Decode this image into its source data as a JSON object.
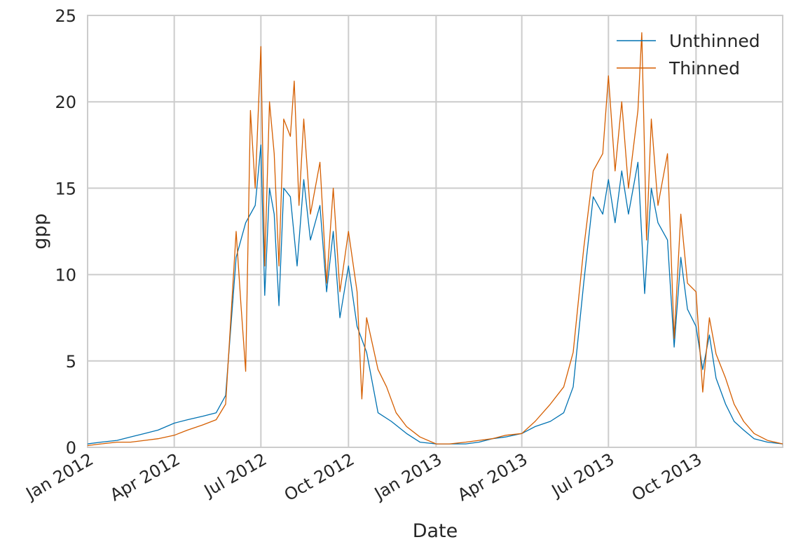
{
  "colors": {
    "unthinned": "#0072b2",
    "thinned": "#d55e00",
    "grid": "#cccccc",
    "text": "#262626"
  },
  "chart_data": {
    "type": "line",
    "xlabel": "Date",
    "ylabel": "gpp",
    "xlim": [
      "2012-01-01",
      "2013-12-31"
    ],
    "ylim": [
      0,
      25
    ],
    "grid": true,
    "legend_position": "top-right",
    "x_ticks": [
      {
        "date": "2012-01-01",
        "label": "Jan 2012"
      },
      {
        "date": "2012-04-01",
        "label": "Apr 2012"
      },
      {
        "date": "2012-07-01",
        "label": "Jul 2012"
      },
      {
        "date": "2012-10-01",
        "label": "Oct 2012"
      },
      {
        "date": "2013-01-01",
        "label": "Jan 2013"
      },
      {
        "date": "2013-04-01",
        "label": "Apr 2013"
      },
      {
        "date": "2013-07-01",
        "label": "Jul 2013"
      },
      {
        "date": "2013-10-01",
        "label": "Oct 2013"
      }
    ],
    "y_ticks": [
      0,
      5,
      10,
      15,
      20,
      25
    ],
    "series": [
      {
        "name": "Unthinned",
        "color": "#0072b2",
        "points": [
          [
            "2012-01-01",
            0.2
          ],
          [
            "2012-01-15",
            0.3
          ],
          [
            "2012-02-01",
            0.4
          ],
          [
            "2012-02-15",
            0.6
          ],
          [
            "2012-03-01",
            0.8
          ],
          [
            "2012-03-15",
            1.0
          ],
          [
            "2012-04-01",
            1.4
          ],
          [
            "2012-04-15",
            1.6
          ],
          [
            "2012-05-01",
            1.8
          ],
          [
            "2012-05-15",
            2.0
          ],
          [
            "2012-05-25",
            3.0
          ],
          [
            "2012-06-05",
            11.0
          ],
          [
            "2012-06-15",
            13.0
          ],
          [
            "2012-06-25",
            14.0
          ],
          [
            "2012-07-01",
            17.5
          ],
          [
            "2012-07-05",
            8.8
          ],
          [
            "2012-07-10",
            15.0
          ],
          [
            "2012-07-15",
            13.5
          ],
          [
            "2012-07-20",
            8.2
          ],
          [
            "2012-07-25",
            15.0
          ],
          [
            "2012-08-01",
            14.5
          ],
          [
            "2012-08-08",
            10.5
          ],
          [
            "2012-08-15",
            15.5
          ],
          [
            "2012-08-22",
            12.0
          ],
          [
            "2012-09-01",
            14.0
          ],
          [
            "2012-09-08",
            9.0
          ],
          [
            "2012-09-15",
            12.5
          ],
          [
            "2012-09-22",
            7.5
          ],
          [
            "2012-10-01",
            10.5
          ],
          [
            "2012-10-10",
            7.0
          ],
          [
            "2012-10-20",
            5.5
          ],
          [
            "2012-11-01",
            2.0
          ],
          [
            "2012-11-15",
            1.5
          ],
          [
            "2012-12-01",
            0.8
          ],
          [
            "2012-12-15",
            0.3
          ],
          [
            "2013-01-01",
            0.2
          ],
          [
            "2013-01-15",
            0.2
          ],
          [
            "2013-02-01",
            0.2
          ],
          [
            "2013-02-15",
            0.3
          ],
          [
            "2013-03-01",
            0.5
          ],
          [
            "2013-03-15",
            0.6
          ],
          [
            "2013-04-01",
            0.8
          ],
          [
            "2013-04-15",
            1.2
          ],
          [
            "2013-05-01",
            1.5
          ],
          [
            "2013-05-15",
            2.0
          ],
          [
            "2013-05-25",
            3.5
          ],
          [
            "2013-06-05",
            9.5
          ],
          [
            "2013-06-15",
            14.5
          ],
          [
            "2013-06-25",
            13.5
          ],
          [
            "2013-07-01",
            15.5
          ],
          [
            "2013-07-08",
            13.0
          ],
          [
            "2013-07-15",
            16.0
          ],
          [
            "2013-07-22",
            13.5
          ],
          [
            "2013-08-01",
            16.5
          ],
          [
            "2013-08-08",
            8.9
          ],
          [
            "2013-08-15",
            15.0
          ],
          [
            "2013-08-22",
            13.0
          ],
          [
            "2013-09-01",
            12.0
          ],
          [
            "2013-09-08",
            5.8
          ],
          [
            "2013-09-15",
            11.0
          ],
          [
            "2013-09-22",
            8.0
          ],
          [
            "2013-10-01",
            7.0
          ],
          [
            "2013-10-08",
            4.5
          ],
          [
            "2013-10-15",
            6.5
          ],
          [
            "2013-10-22",
            4.0
          ],
          [
            "2013-11-01",
            2.5
          ],
          [
            "2013-11-10",
            1.5
          ],
          [
            "2013-11-20",
            1.0
          ],
          [
            "2013-12-01",
            0.5
          ],
          [
            "2013-12-15",
            0.3
          ],
          [
            "2013-12-31",
            0.2
          ]
        ]
      },
      {
        "name": "Thinned",
        "color": "#d55e00",
        "points": [
          [
            "2012-01-01",
            0.1
          ],
          [
            "2012-01-15",
            0.2
          ],
          [
            "2012-02-01",
            0.3
          ],
          [
            "2012-02-15",
            0.3
          ],
          [
            "2012-03-01",
            0.4
          ],
          [
            "2012-03-15",
            0.5
          ],
          [
            "2012-04-01",
            0.7
          ],
          [
            "2012-04-15",
            1.0
          ],
          [
            "2012-05-01",
            1.3
          ],
          [
            "2012-05-15",
            1.6
          ],
          [
            "2012-05-25",
            2.5
          ],
          [
            "2012-06-05",
            12.5
          ],
          [
            "2012-06-10",
            8.3
          ],
          [
            "2012-06-15",
            4.4
          ],
          [
            "2012-06-20",
            19.5
          ],
          [
            "2012-06-25",
            15.0
          ],
          [
            "2012-07-01",
            23.2
          ],
          [
            "2012-07-05",
            10.5
          ],
          [
            "2012-07-10",
            20.0
          ],
          [
            "2012-07-15",
            17.0
          ],
          [
            "2012-07-20",
            10.5
          ],
          [
            "2012-07-25",
            19.0
          ],
          [
            "2012-08-01",
            18.0
          ],
          [
            "2012-08-05",
            21.2
          ],
          [
            "2012-08-10",
            14.0
          ],
          [
            "2012-08-15",
            19.0
          ],
          [
            "2012-08-22",
            13.5
          ],
          [
            "2012-09-01",
            16.5
          ],
          [
            "2012-09-08",
            9.5
          ],
          [
            "2012-09-15",
            15.0
          ],
          [
            "2012-09-22",
            9.0
          ],
          [
            "2012-10-01",
            12.5
          ],
          [
            "2012-10-10",
            9.0
          ],
          [
            "2012-10-15",
            2.8
          ],
          [
            "2012-10-20",
            7.5
          ],
          [
            "2012-11-01",
            4.5
          ],
          [
            "2012-11-10",
            3.5
          ],
          [
            "2012-11-20",
            2.0
          ],
          [
            "2012-12-01",
            1.2
          ],
          [
            "2012-12-15",
            0.6
          ],
          [
            "2013-01-01",
            0.2
          ],
          [
            "2013-01-15",
            0.2
          ],
          [
            "2013-02-01",
            0.3
          ],
          [
            "2013-02-15",
            0.4
          ],
          [
            "2013-03-01",
            0.5
          ],
          [
            "2013-03-15",
            0.7
          ],
          [
            "2013-04-01",
            0.8
          ],
          [
            "2013-04-15",
            1.5
          ],
          [
            "2013-05-01",
            2.5
          ],
          [
            "2013-05-15",
            3.5
          ],
          [
            "2013-05-25",
            5.5
          ],
          [
            "2013-06-05",
            11.5
          ],
          [
            "2013-06-15",
            16.0
          ],
          [
            "2013-06-25",
            17.0
          ],
          [
            "2013-07-01",
            21.5
          ],
          [
            "2013-07-08",
            16.0
          ],
          [
            "2013-07-15",
            20.0
          ],
          [
            "2013-07-22",
            15.0
          ],
          [
            "2013-08-01",
            19.5
          ],
          [
            "2013-08-05",
            24.0
          ],
          [
            "2013-08-10",
            12.0
          ],
          [
            "2013-08-15",
            19.0
          ],
          [
            "2013-08-22",
            14.0
          ],
          [
            "2013-09-01",
            17.0
          ],
          [
            "2013-09-08",
            6.3
          ],
          [
            "2013-09-15",
            13.5
          ],
          [
            "2013-09-22",
            9.5
          ],
          [
            "2013-10-01",
            9.0
          ],
          [
            "2013-10-08",
            3.2
          ],
          [
            "2013-10-15",
            7.5
          ],
          [
            "2013-10-22",
            5.4
          ],
          [
            "2013-11-01",
            4.0
          ],
          [
            "2013-11-10",
            2.5
          ],
          [
            "2013-11-20",
            1.5
          ],
          [
            "2013-12-01",
            0.8
          ],
          [
            "2013-12-15",
            0.4
          ],
          [
            "2013-12-31",
            0.2
          ]
        ]
      }
    ]
  }
}
